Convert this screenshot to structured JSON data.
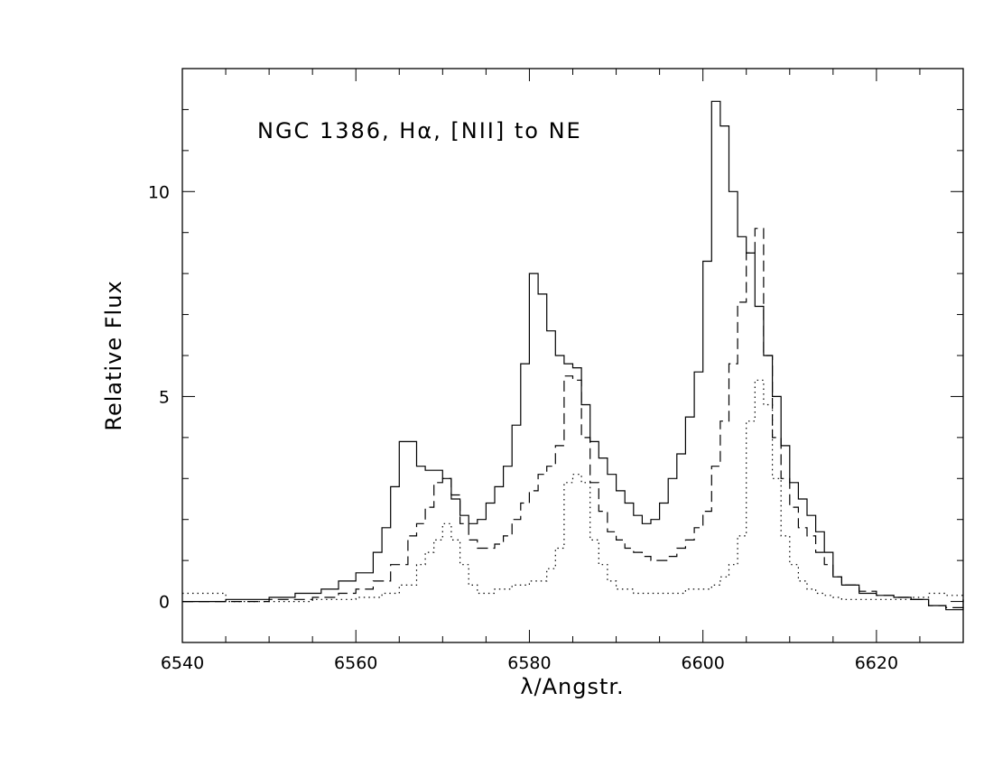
{
  "chart_data": {
    "type": "line",
    "title": "",
    "annotation": "NGC 1386, Hα, [NII] to NE",
    "xlabel": "λ/Angstr.",
    "ylabel": "Relative Flux",
    "xlim": [
      6540,
      6630
    ],
    "ylim": [
      -1,
      13
    ],
    "x_ticks": [
      6540,
      6560,
      6580,
      6600,
      6620
    ],
    "y_ticks": [
      0,
      5,
      10
    ],
    "grid": false,
    "legend": "none",
    "series": [
      {
        "style": "solid",
        "x": [
          6540,
          6545,
          6550,
          6553,
          6556,
          6558,
          6560,
          6562,
          6563,
          6564,
          6565,
          6566,
          6567,
          6568,
          6569,
          6570,
          6571,
          6572,
          6573,
          6574,
          6575,
          6576,
          6577,
          6578,
          6579,
          6580,
          6581,
          6582,
          6583,
          6584,
          6585,
          6586,
          6587,
          6588,
          6589,
          6590,
          6591,
          6592,
          6593,
          6594,
          6595,
          6596,
          6597,
          6598,
          6599,
          6600,
          6601,
          6602,
          6603,
          6604,
          6605,
          6606,
          6607,
          6608,
          6609,
          6610,
          6611,
          6612,
          6613,
          6614,
          6615,
          6616,
          6618,
          6620,
          6622,
          6624,
          6626,
          6628,
          6630
        ],
        "y": [
          0,
          0.05,
          0.1,
          0.2,
          0.3,
          0.5,
          0.7,
          1.2,
          1.8,
          2.8,
          3.9,
          3.9,
          3.3,
          3.2,
          3.2,
          3.0,
          2.5,
          2.1,
          1.9,
          2.0,
          2.4,
          2.8,
          3.3,
          4.3,
          5.8,
          8.0,
          7.5,
          6.6,
          6.0,
          5.8,
          5.7,
          4.8,
          3.9,
          3.5,
          3.1,
          2.7,
          2.4,
          2.1,
          1.9,
          2.0,
          2.4,
          3.0,
          3.6,
          4.5,
          5.6,
          8.3,
          12.2,
          11.6,
          10.0,
          8.9,
          8.5,
          7.2,
          6.0,
          5.0,
          3.8,
          2.9,
          2.5,
          2.1,
          1.7,
          1.2,
          0.6,
          0.4,
          0.2,
          0.15,
          0.1,
          0.05,
          -0.1,
          -0.2,
          0.05
        ]
      },
      {
        "style": "dashed",
        "x": [
          6540,
          6545,
          6550,
          6555,
          6558,
          6560,
          6562,
          6564,
          6566,
          6567,
          6568,
          6569,
          6570,
          6571,
          6572,
          6573,
          6574,
          6575,
          6576,
          6577,
          6578,
          6579,
          6580,
          6581,
          6582,
          6583,
          6584,
          6585,
          6586,
          6587,
          6588,
          6589,
          6590,
          6591,
          6592,
          6593,
          6594,
          6595,
          6596,
          6597,
          6598,
          6599,
          6600,
          6601,
          6602,
          6603,
          6604,
          6605,
          6606,
          6607,
          6608,
          6609,
          6610,
          6611,
          6612,
          6613,
          6614,
          6615,
          6616,
          6618,
          6620,
          6622,
          6624,
          6626,
          6628,
          6630
        ],
        "y": [
          0,
          0,
          0.05,
          0.1,
          0.2,
          0.3,
          0.5,
          0.9,
          1.6,
          1.9,
          2.3,
          2.9,
          3.0,
          2.6,
          1.9,
          1.5,
          1.3,
          1.3,
          1.4,
          1.6,
          2.0,
          2.4,
          2.7,
          3.1,
          3.3,
          3.8,
          5.5,
          5.4,
          4.0,
          2.9,
          2.2,
          1.7,
          1.5,
          1.3,
          1.2,
          1.1,
          1.0,
          1.0,
          1.1,
          1.3,
          1.5,
          1.8,
          2.2,
          3.3,
          4.4,
          5.8,
          7.3,
          8.5,
          9.1,
          6.0,
          4.0,
          3.0,
          2.3,
          1.8,
          1.6,
          1.2,
          0.9,
          0.6,
          0.4,
          0.25,
          0.15,
          0.1,
          0.05,
          -0.1,
          -0.15,
          0.05
        ]
      },
      {
        "style": "dotted",
        "x": [
          6540,
          6545,
          6550,
          6555,
          6560,
          6563,
          6565,
          6567,
          6568,
          6569,
          6570,
          6571,
          6572,
          6573,
          6574,
          6575,
          6576,
          6578,
          6580,
          6582,
          6583,
          6584,
          6585,
          6586,
          6587,
          6588,
          6589,
          6590,
          6592,
          6594,
          6596,
          6598,
          6600,
          6601,
          6602,
          6603,
          6604,
          6605,
          6606,
          6607,
          6608,
          6609,
          6610,
          6611,
          6612,
          6613,
          6614,
          6615,
          6616,
          6618,
          6620,
          6622,
          6624,
          6626,
          6628,
          6630
        ],
        "y": [
          0.2,
          0,
          0,
          0.05,
          0.1,
          0.2,
          0.4,
          0.9,
          1.2,
          1.5,
          1.9,
          1.5,
          0.9,
          0.4,
          0.2,
          0.2,
          0.3,
          0.4,
          0.5,
          0.8,
          1.3,
          2.9,
          3.1,
          2.9,
          1.5,
          0.9,
          0.5,
          0.3,
          0.2,
          0.2,
          0.2,
          0.3,
          0.3,
          0.4,
          0.6,
          0.9,
          1.6,
          4.4,
          5.4,
          4.8,
          3.0,
          1.6,
          0.9,
          0.5,
          0.3,
          0.2,
          0.15,
          0.1,
          0.05,
          0.05,
          0.05,
          0.05,
          0.1,
          0.2,
          0.15,
          0.1
        ]
      }
    ]
  }
}
